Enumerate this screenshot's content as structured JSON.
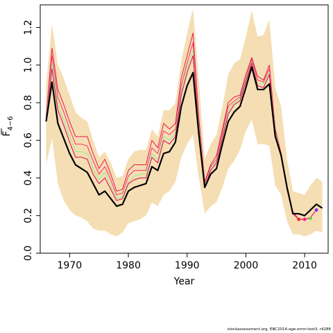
{
  "chart_data": {
    "type": "line",
    "xlabel": "Year",
    "ylabel_main": "F",
    "ylabel_sub": "4−6",
    "xlim": [
      1965,
      2014
    ],
    "ylim": [
      0,
      1.32
    ],
    "xticks": [
      1970,
      1980,
      1990,
      2000,
      2010
    ],
    "yticks": [
      0.0,
      0.2,
      0.4,
      0.6,
      0.8,
      1.0,
      1.2
    ],
    "ytick_labels": [
      "0.0",
      "0.2",
      "0.4",
      "0.6",
      "0.8",
      "1.0",
      "1.2"
    ],
    "colors": {
      "band": "#f5deb3",
      "main": "#000000",
      "retro": [
        "#ff0055",
        "#ff2a6a",
        "#e8174f",
        "#d90050",
        "#ff9999",
        "#90ee90"
      ]
    },
    "confidence_band": {
      "x": [
        1966,
        1967,
        1968,
        1969,
        1970,
        1971,
        1972,
        1973,
        1974,
        1975,
        1976,
        1977,
        1978,
        1979,
        1980,
        1981,
        1982,
        1983,
        1984,
        1985,
        1986,
        1987,
        1988,
        1989,
        1990,
        1991,
        1992,
        1993,
        1994,
        1995,
        1996,
        1997,
        1998,
        1999,
        2000,
        2001,
        2002,
        2003,
        2004,
        2005,
        2006,
        2007,
        2008,
        2009,
        2010,
        2011,
        2012,
        2013
      ],
      "upper": [
        0.9,
        1.22,
        1.0,
        0.93,
        0.84,
        0.75,
        0.72,
        0.7,
        0.6,
        0.51,
        0.54,
        0.48,
        0.4,
        0.41,
        0.5,
        0.54,
        0.55,
        0.55,
        0.66,
        0.62,
        0.76,
        0.76,
        0.8,
        1.02,
        1.17,
        1.3,
        0.92,
        0.5,
        0.58,
        0.63,
        0.78,
        0.95,
        1.01,
        1.03,
        1.15,
        1.29,
        1.15,
        1.16,
        1.24,
        0.88,
        0.78,
        0.5,
        0.33,
        0.32,
        0.31,
        0.36,
        0.4,
        0.38
      ],
      "lower": [
        0.47,
        0.61,
        0.37,
        0.28,
        0.23,
        0.2,
        0.19,
        0.17,
        0.13,
        0.12,
        0.12,
        0.1,
        0.09,
        0.11,
        0.16,
        0.17,
        0.18,
        0.2,
        0.27,
        0.25,
        0.31,
        0.33,
        0.38,
        0.51,
        0.58,
        0.63,
        0.4,
        0.21,
        0.25,
        0.27,
        0.35,
        0.45,
        0.49,
        0.55,
        0.65,
        0.71,
        0.58,
        0.58,
        0.57,
        0.36,
        0.31,
        0.17,
        0.1,
        0.1,
        0.09,
        0.1,
        0.12,
        0.11
      ]
    },
    "series": [
      {
        "x": [
          1966,
          1967,
          1968,
          1969,
          1970,
          1971,
          1972,
          1973,
          1974,
          1975,
          1976,
          1977,
          1978,
          1979,
          1980,
          1981,
          1982,
          1983,
          1984,
          1985,
          1986,
          1987,
          1988,
          1989,
          1990,
          1991,
          1992,
          1993,
          1994,
          1995,
          1996,
          1997,
          1998,
          1999,
          2000,
          2001,
          2002,
          2003,
          2004,
          2005,
          2006,
          2007,
          2008,
          2009,
          2010,
          2011,
          2012,
          2013
        ],
        "values": [
          0.7,
          0.91,
          0.69,
          0.61,
          0.53,
          0.47,
          0.45,
          0.43,
          0.37,
          0.31,
          0.33,
          0.29,
          0.25,
          0.26,
          0.33,
          0.35,
          0.36,
          0.37,
          0.46,
          0.44,
          0.53,
          0.54,
          0.59,
          0.78,
          0.89,
          0.96,
          0.63,
          0.35,
          0.42,
          0.45,
          0.58,
          0.7,
          0.75,
          0.78,
          0.88,
          0.99,
          0.87,
          0.87,
          0.9,
          0.62,
          0.52,
          0.35,
          0.21,
          0.21,
          0.2,
          0.23,
          0.26,
          0.24
        ],
        "color": "#000000",
        "width": 2.2
      },
      {
        "x": [
          1966,
          1967,
          1968,
          1969,
          1970,
          1971,
          1972,
          1973,
          1974,
          1975,
          1976,
          1977,
          1978,
          1979,
          1980,
          1981,
          1982,
          1983,
          1984,
          1985,
          1986,
          1987,
          1988,
          1989,
          1990,
          1991,
          1992,
          1993,
          1994,
          1995,
          1996,
          1997,
          1998,
          1999,
          2000,
          2001,
          2002,
          2003,
          2004,
          2005,
          2006,
          2007,
          2008,
          2009
        ],
        "values": [
          0.73,
          1.09,
          0.87,
          0.79,
          0.7,
          0.62,
          0.62,
          0.62,
          0.53,
          0.45,
          0.5,
          0.42,
          0.33,
          0.34,
          0.44,
          0.47,
          0.47,
          0.47,
          0.6,
          0.56,
          0.69,
          0.66,
          0.69,
          0.93,
          1.05,
          1.17,
          0.72,
          0.38,
          0.47,
          0.52,
          0.66,
          0.8,
          0.83,
          0.84,
          0.95,
          1.04,
          0.94,
          0.92,
          1.0,
          0.66,
          0.53,
          0.34,
          0.22,
          0.18
        ],
        "color": "#e8174f",
        "width": 1
      },
      {
        "x": [
          1966,
          1967,
          1968,
          1969,
          1970,
          1971,
          1972,
          1973,
          1974,
          1975,
          1976,
          1977,
          1978,
          1979,
          1980,
          1981,
          1982,
          1983,
          1984,
          1985,
          1986,
          1987,
          1988,
          1989,
          1990,
          1991,
          1992,
          1993,
          1994,
          1995,
          1996,
          1997,
          1998,
          1999,
          2000,
          2001,
          2002,
          2003,
          2004,
          2005,
          2006,
          2007,
          2008,
          2009,
          2010
        ],
        "values": [
          0.72,
          1.05,
          0.83,
          0.75,
          0.66,
          0.58,
          0.58,
          0.57,
          0.49,
          0.42,
          0.46,
          0.39,
          0.31,
          0.32,
          0.41,
          0.44,
          0.44,
          0.44,
          0.56,
          0.53,
          0.65,
          0.63,
          0.66,
          0.89,
          1.01,
          1.12,
          0.7,
          0.37,
          0.46,
          0.5,
          0.64,
          0.78,
          0.81,
          0.83,
          0.93,
          1.03,
          0.92,
          0.91,
          0.98,
          0.65,
          0.52,
          0.34,
          0.21,
          0.18,
          0.18
        ],
        "color": "#ff2a6a",
        "width": 1
      },
      {
        "x": [
          1966,
          1967,
          1968,
          1969,
          1970,
          1971,
          1972,
          1973,
          1974,
          1975,
          1976,
          1977,
          1978,
          1979,
          1980,
          1981,
          1982,
          1983,
          1984,
          1985,
          1986,
          1987,
          1988,
          1989,
          1990,
          1991,
          1992,
          1993,
          1994,
          1995,
          1996,
          1997,
          1998,
          1999,
          2000,
          2001,
          2002,
          2003,
          2004,
          2005,
          2006,
          2007,
          2008,
          2009,
          2010,
          2011
        ],
        "values": [
          0.71,
          1.01,
          0.79,
          0.71,
          0.62,
          0.54,
          0.54,
          0.53,
          0.45,
          0.39,
          0.43,
          0.36,
          0.29,
          0.3,
          0.38,
          0.41,
          0.42,
          0.42,
          0.53,
          0.5,
          0.62,
          0.6,
          0.64,
          0.86,
          0.98,
          1.08,
          0.68,
          0.36,
          0.45,
          0.49,
          0.62,
          0.76,
          0.8,
          0.82,
          0.92,
          1.02,
          0.9,
          0.9,
          0.96,
          0.64,
          0.52,
          0.34,
          0.21,
          0.18,
          0.18,
          0.18
        ],
        "color": "#90ee90",
        "width": 1
      },
      {
        "x": [
          1966,
          1967,
          1968,
          1969,
          1970,
          1971,
          1972,
          1973,
          1974,
          1975,
          1976,
          1977,
          1978,
          1979,
          1980,
          1981,
          1982,
          1983,
          1984,
          1985,
          1986,
          1987,
          1988,
          1989,
          1990,
          1991,
          1992,
          1993,
          1994,
          1995,
          1996,
          1997,
          1998,
          1999,
          2000,
          2001,
          2002,
          2003,
          2004,
          2005,
          2006,
          2007,
          2008,
          2009,
          2010,
          2011,
          2012
        ],
        "values": [
          0.7,
          0.98,
          0.76,
          0.68,
          0.59,
          0.51,
          0.51,
          0.5,
          0.42,
          0.37,
          0.4,
          0.34,
          0.28,
          0.29,
          0.37,
          0.39,
          0.4,
          0.4,
          0.51,
          0.48,
          0.6,
          0.58,
          0.62,
          0.84,
          0.96,
          1.05,
          0.66,
          0.35,
          0.44,
          0.48,
          0.61,
          0.74,
          0.79,
          0.81,
          0.91,
          1.01,
          0.89,
          0.88,
          0.95,
          0.63,
          0.51,
          0.34,
          0.21,
          0.18,
          0.18,
          0.19,
          0.23
        ],
        "color": "#d90050",
        "width": 1
      }
    ],
    "terminal_points": [
      {
        "x": 2009,
        "y": 0.18,
        "color": "#ff2020"
      },
      {
        "x": 2010,
        "y": 0.18,
        "color": "#ff1493"
      },
      {
        "x": 2011,
        "y": 0.185,
        "color": "#7ccd32"
      },
      {
        "x": 2012,
        "y": 0.23,
        "color": "#8a2be2"
      }
    ]
  },
  "footer": "stockassessment.org, EBC2014-age-error-test3, r4286"
}
